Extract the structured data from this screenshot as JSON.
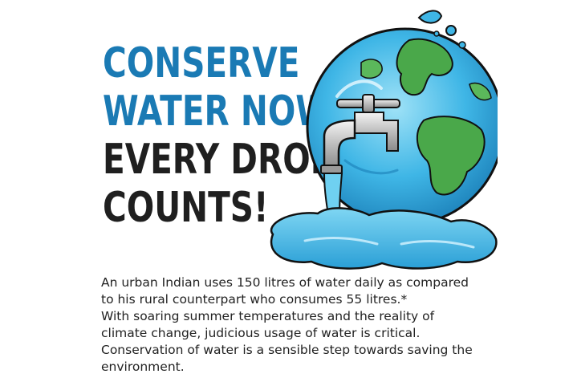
{
  "headline": {
    "line1": "CONSERVE",
    "line2": "WATER NOW!",
    "line3": "EVERY DROP",
    "line4": "COUNTS!"
  },
  "body": {
    "paragraph1": "An urban Indian uses 150 litres of water daily as compared to his rural counterpart who consumes 55 litres.*",
    "paragraph2": "With soaring summer temperatures and the reality of climate change, judicious usage of water is critical.",
    "paragraph3": "Conservation of water is a sensible step towards saving the environment."
  },
  "colors": {
    "headline_blue": "#1a7ab4",
    "headline_dark": "#1f1f1f",
    "ocean": "#3fb6e6",
    "land": "#4aa84a"
  },
  "icons": [
    "globe-illustration",
    "faucet-icon",
    "water-puddle"
  ]
}
